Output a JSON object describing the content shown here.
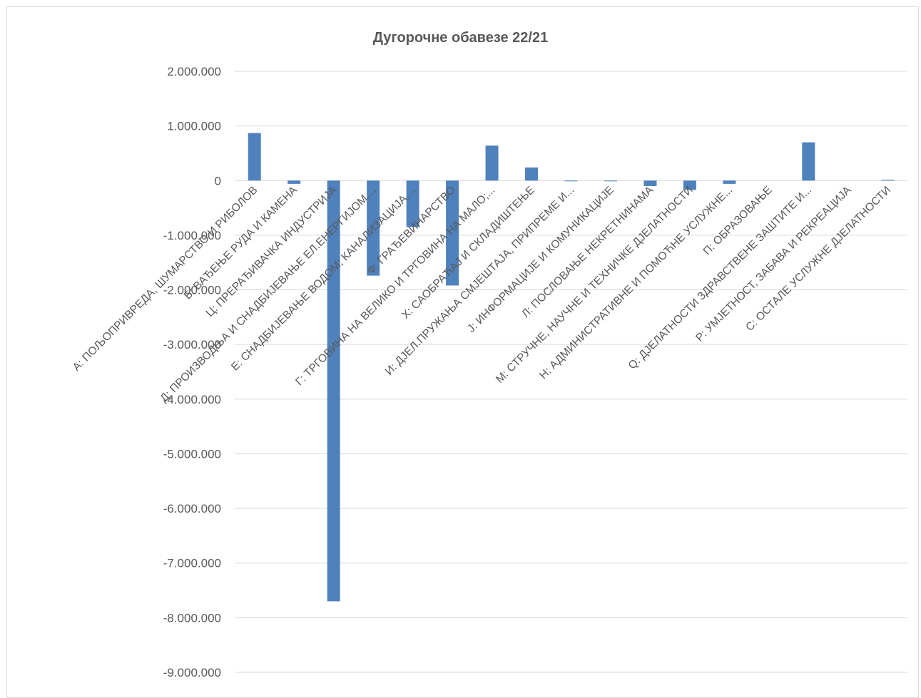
{
  "chart_data": {
    "type": "bar",
    "title": "Дугорочне обавезе 22/21",
    "xlabel": "",
    "ylabel": "",
    "ylim": [
      -9000000,
      2000000
    ],
    "yticks": [
      2000000,
      1000000,
      0,
      -1000000,
      -2000000,
      -3000000,
      -4000000,
      -5000000,
      -6000000,
      -7000000,
      -8000000,
      -9000000
    ],
    "ytick_labels": [
      "2.000.000",
      "1.000.000",
      "0",
      "-1.000.000",
      "-2.000.000",
      "-3.000.000",
      "-4.000.000",
      "-5.000.000",
      "-6.000.000",
      "-7.000.000",
      "-8.000.000",
      "-9.000.000"
    ],
    "categories": [
      "А: ПОЉОПРИВРЕДА, ШУМАРСТВО И РИБОЛОВ",
      "Б: ВАЂЕЊЕ РУДА И КАМЕНА",
      "Ц: ПРЕРАЂИВАЧКА ИНДУСТРИЈА",
      "Д: ПРОИЗВОДЊА И СНАДБИЈЕВАЊЕ ЕЛ.ЕНЕРГИЈОМ,...",
      "Е: СНАДБИЈЕВАЊЕ ВОДОМ; КАНАЛИЗАЦИЈА,...",
      "Ф: ГРАЂЕВИНАРСТВО",
      "Г: ТРГОВИНА НА ВЕЛИКО И ТРГОВИНА НА МАЛО;...",
      "Х: САОБРАЋАЈ И СКЛАДИШТЕЊЕ",
      "И: ДЈЕЛ.ПРУЖАЊА СМЈЕШТАЈА, ПРИПРЕМЕ И...",
      "Ј: ИНФОРМАЦИЈЕ И КОМУНИКАЦИЈЕ",
      "Л: ПОСЛОВАЊЕ НЕКРЕТНИНАМА",
      "М: СТРУЧНЕ, НАУЧНЕ И ТЕХНИЧКЕ ДЈЕЛАТНОСТИ",
      "Н: АДМИНИСТРАТИВНЕ И ПОМОЋНЕ УСЛУЖНЕ...",
      "П: ОБРАЗОВАЊЕ",
      "Q: ДЈЕЛАТНОСТИ ЗДРАВСТВЕНЕ ЗАШТИТЕ И...",
      "Р: УМЈЕТНОСТ, ЗАБАВА И РЕКРЕАЦИЈА",
      "С: ОСТАЛЕ УСЛУЖНЕ ДЈЕЛАТНОСТИ"
    ],
    "values": [
      870000,
      -60000,
      -7700000,
      -1740000,
      -850000,
      -1920000,
      640000,
      240000,
      -10000,
      -5000,
      -100000,
      -170000,
      -60000,
      0,
      700000,
      0,
      15000
    ],
    "grid": true,
    "legend": "none",
    "bar_color": "#4f81bd",
    "grid_color": "#d9d9d9",
    "text_color": "#595959"
  }
}
